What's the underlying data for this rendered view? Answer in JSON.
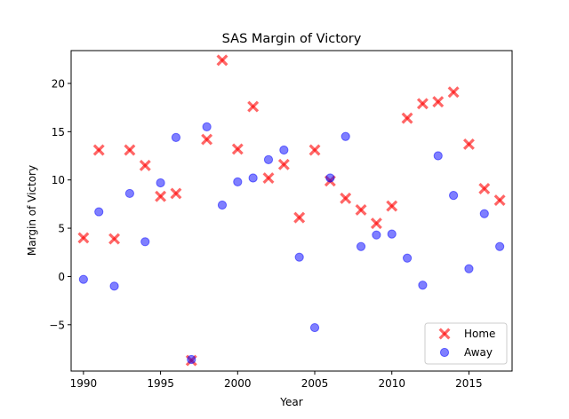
{
  "chart_data": {
    "type": "scatter",
    "title": "SAS Margin of Victory",
    "xlabel": "Year",
    "ylabel": "Margin of Victory",
    "xlim": [
      1989.2,
      1997.8,
      0
    ],
    "ylim": [
      -9.8,
      23.4
    ],
    "xticks": [
      1990,
      1995,
      2000,
      2005,
      2010,
      2015
    ],
    "yticks": [
      -5,
      0,
      5,
      10,
      15,
      20
    ],
    "xtick_labels": [
      "1990",
      "1995",
      "2000",
      "2005",
      "2010",
      "2015"
    ],
    "ytick_labels": [
      "−5",
      "0",
      "5",
      "10",
      "15",
      "20"
    ],
    "grid": false,
    "legend_position": "bottom-right",
    "series": [
      {
        "name": "Home",
        "marker": "x",
        "color": "#ff0000",
        "x": [
          1990,
          1991,
          1992,
          1993,
          1994,
          1995,
          1996,
          1997,
          1998,
          1999,
          2000,
          2001,
          2002,
          2003,
          2004,
          2005,
          2006,
          2007,
          2008,
          2009,
          2010,
          2011,
          2012,
          2013,
          2014,
          2015,
          2016,
          2017
        ],
        "y": [
          4.0,
          13.1,
          3.9,
          13.1,
          11.5,
          8.3,
          8.6,
          -8.7,
          14.2,
          22.4,
          13.2,
          17.6,
          10.2,
          11.6,
          6.1,
          13.1,
          9.9,
          8.1,
          6.9,
          5.5,
          7.3,
          16.4,
          17.9,
          18.1,
          19.1,
          13.7,
          9.1,
          7.9
        ]
      },
      {
        "name": "Away",
        "marker": "o",
        "color": "#0000ff",
        "x": [
          1990,
          1991,
          1992,
          1993,
          1994,
          1995,
          1996,
          1997,
          1998,
          1999,
          2000,
          2001,
          2002,
          2003,
          2004,
          2005,
          2006,
          2007,
          2008,
          2009,
          2010,
          2011,
          2012,
          2013,
          2014,
          2015,
          2016,
          2017
        ],
        "y": [
          -0.3,
          6.7,
          -1.0,
          8.6,
          3.6,
          9.7,
          14.4,
          -8.6,
          15.5,
          7.4,
          9.8,
          10.2,
          12.1,
          13.1,
          2.0,
          -5.3,
          10.2,
          14.5,
          3.1,
          4.3,
          4.4,
          1.9,
          -0.9,
          12.5,
          8.4,
          0.8,
          6.5,
          3.1
        ]
      }
    ]
  }
}
